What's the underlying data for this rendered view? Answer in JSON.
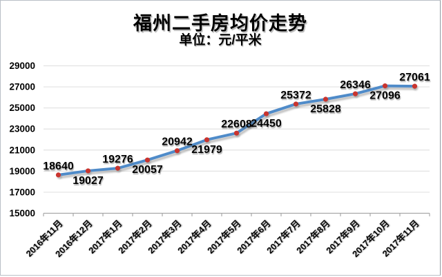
{
  "chart_data": {
    "type": "line",
    "title": "福州二手房均价走势",
    "subtitle": "单位：元/平米",
    "xlabel": "",
    "ylabel": "",
    "categories": [
      "2016年11月",
      "2016年12月",
      "2017年1月",
      "2017年2月",
      "2017年3月",
      "2017年4月",
      "2017年5月",
      "2017年6月",
      "2017年7月",
      "2017年8月",
      "2017年9月",
      "2017年10月",
      "2017年11月"
    ],
    "values": [
      18640,
      19027,
      19276,
      20057,
      20942,
      21979,
      22608,
      24450,
      25372,
      25828,
      26346,
      27096,
      27061
    ],
    "label_positions": [
      "above",
      "below",
      "above",
      "below",
      "above",
      "below",
      "above",
      "below",
      "above",
      "below",
      "above",
      "below",
      "above"
    ],
    "ylim": [
      15000,
      29000
    ],
    "yticks": [
      15000,
      17000,
      19000,
      21000,
      23000,
      25000,
      27000,
      29000
    ],
    "grid": "horizontal",
    "legend": false,
    "colors": {
      "line": "#4f8bc9",
      "marker": "#c9342e",
      "gridline": "#e2e2e2",
      "axis": "#a8a8a8",
      "text": "#000000"
    }
  }
}
